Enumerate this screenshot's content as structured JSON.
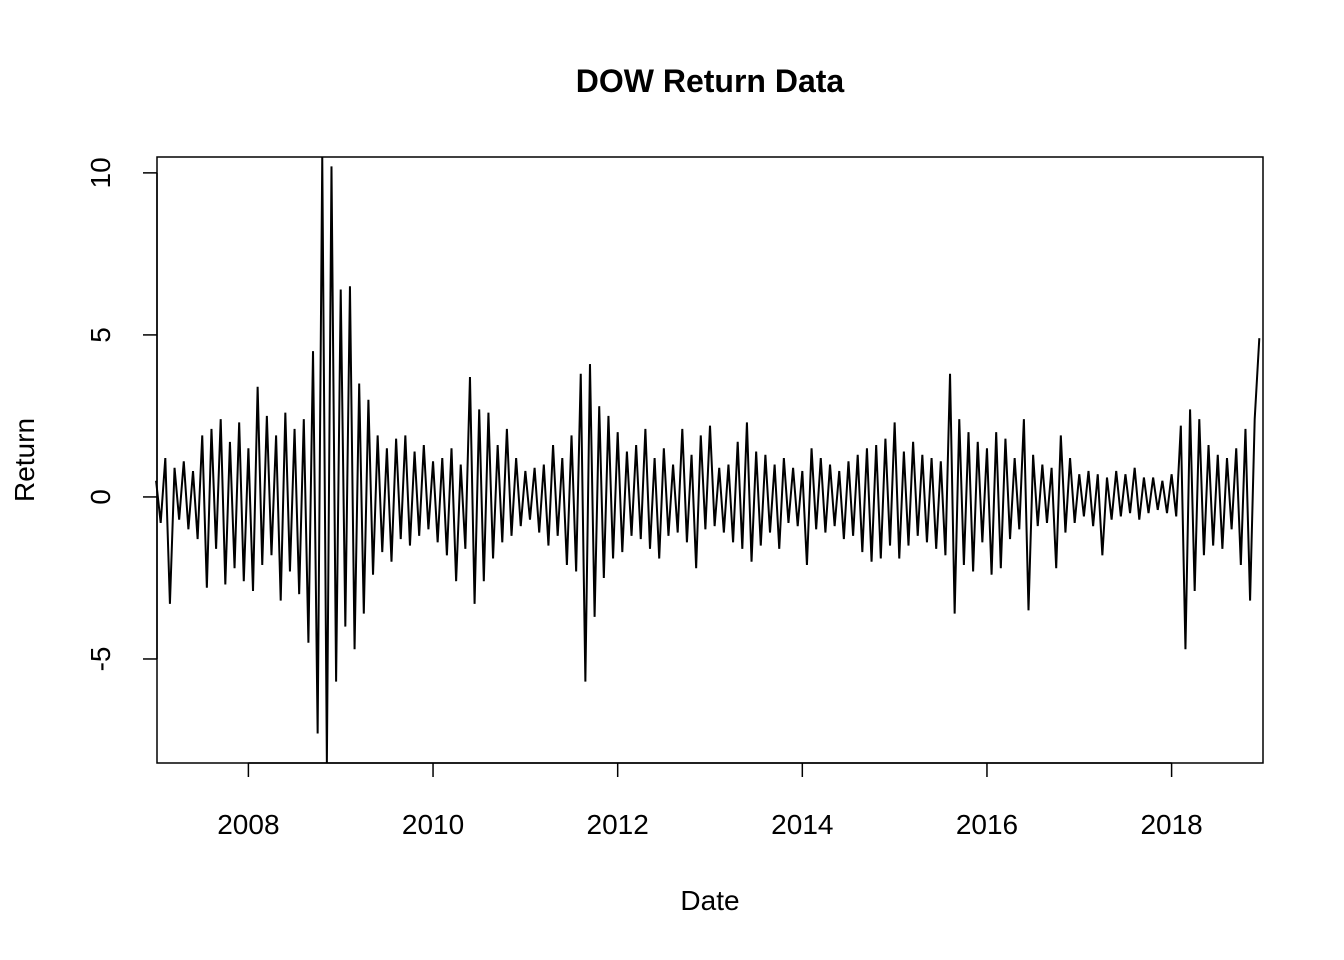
{
  "chart_data": {
    "type": "line",
    "title": "DOW Return Data",
    "xlabel": "Date",
    "ylabel": "Return",
    "x": [
      2007,
      2007.05,
      2007.1,
      2007.15,
      2007.2,
      2007.25,
      2007.3,
      2007.35,
      2007.4,
      2007.45,
      2007.5,
      2007.55,
      2007.6,
      2007.65,
      2007.7,
      2007.75,
      2007.8,
      2007.85,
      2007.9,
      2007.95,
      2008,
      2008.05,
      2008.1,
      2008.15,
      2008.2,
      2008.25,
      2008.3,
      2008.35,
      2008.4,
      2008.45,
      2008.5,
      2008.55,
      2008.6,
      2008.65,
      2008.7,
      2008.75,
      2008.8,
      2008.85,
      2008.9,
      2008.95,
      2009,
      2009.05,
      2009.1,
      2009.15,
      2009.2,
      2009.25,
      2009.3,
      2009.35,
      2009.4,
      2009.45,
      2009.5,
      2009.55,
      2009.6,
      2009.65,
      2009.7,
      2009.75,
      2009.8,
      2009.85,
      2009.9,
      2009.95,
      2010,
      2010.05,
      2010.1,
      2010.15,
      2010.2,
      2010.25,
      2010.3,
      2010.35,
      2010.4,
      2010.45,
      2010.5,
      2010.55,
      2010.6,
      2010.65,
      2010.7,
      2010.75,
      2010.8,
      2010.85,
      2010.9,
      2010.95,
      2011,
      2011.05,
      2011.1,
      2011.15,
      2011.2,
      2011.25,
      2011.3,
      2011.35,
      2011.4,
      2011.45,
      2011.5,
      2011.55,
      2011.6,
      2011.65,
      2011.7,
      2011.75,
      2011.8,
      2011.85,
      2011.9,
      2011.95,
      2012,
      2012.05,
      2012.1,
      2012.15,
      2012.2,
      2012.25,
      2012.3,
      2012.35,
      2012.4,
      2012.45,
      2012.5,
      2012.55,
      2012.6,
      2012.65,
      2012.7,
      2012.75,
      2012.8,
      2012.85,
      2012.9,
      2012.95,
      2013,
      2013.05,
      2013.1,
      2013.15,
      2013.2,
      2013.25,
      2013.3,
      2013.35,
      2013.4,
      2013.45,
      2013.5,
      2013.55,
      2013.6,
      2013.65,
      2013.7,
      2013.75,
      2013.8,
      2013.85,
      2013.9,
      2013.95,
      2014,
      2014.05,
      2014.1,
      2014.15,
      2014.2,
      2014.25,
      2014.3,
      2014.35,
      2014.4,
      2014.45,
      2014.5,
      2014.55,
      2014.6,
      2014.65,
      2014.7,
      2014.75,
      2014.8,
      2014.85,
      2014.9,
      2014.95,
      2015,
      2015.05,
      2015.1,
      2015.15,
      2015.2,
      2015.25,
      2015.3,
      2015.35,
      2015.4,
      2015.45,
      2015.5,
      2015.55,
      2015.6,
      2015.65,
      2015.7,
      2015.75,
      2015.8,
      2015.85,
      2015.9,
      2015.95,
      2016,
      2016.05,
      2016.1,
      2016.15,
      2016.2,
      2016.25,
      2016.3,
      2016.35,
      2016.4,
      2016.45,
      2016.5,
      2016.55,
      2016.6,
      2016.65,
      2016.7,
      2016.75,
      2016.8,
      2016.85,
      2016.9,
      2016.95,
      2017,
      2017.05,
      2017.1,
      2017.15,
      2017.2,
      2017.25,
      2017.3,
      2017.35,
      2017.4,
      2017.45,
      2017.5,
      2017.55,
      2017.6,
      2017.65,
      2017.7,
      2017.75,
      2017.8,
      2017.85,
      2017.9,
      2017.95,
      2018,
      2018.05,
      2018.1,
      2018.15,
      2018.2,
      2018.25,
      2018.3,
      2018.35,
      2018.4,
      2018.45,
      2018.5,
      2018.55,
      2018.6,
      2018.65,
      2018.7,
      2018.75,
      2018.8,
      2018.85,
      2018.9,
      2018.95
    ],
    "values": [
      0.5,
      -0.8,
      1.2,
      -3.3,
      0.9,
      -0.7,
      1.1,
      -1.0,
      0.8,
      -1.3,
      1.9,
      -2.8,
      2.1,
      -1.6,
      2.4,
      -2.7,
      1.7,
      -2.2,
      2.3,
      -2.6,
      1.5,
      -2.9,
      3.4,
      -2.1,
      2.5,
      -1.8,
      1.9,
      -3.2,
      2.6,
      -2.3,
      2.1,
      -3.0,
      2.4,
      -4.5,
      4.5,
      -7.3,
      10.5,
      -8.2,
      10.2,
      -5.7,
      6.4,
      -4.0,
      6.5,
      -4.7,
      3.5,
      -3.6,
      3.0,
      -2.4,
      1.9,
      -1.7,
      1.5,
      -2.0,
      1.8,
      -1.3,
      1.9,
      -1.5,
      1.4,
      -1.2,
      1.6,
      -1.0,
      1.1,
      -1.4,
      1.2,
      -1.8,
      1.5,
      -2.6,
      1.0,
      -1.6,
      3.7,
      -3.3,
      2.7,
      -2.6,
      2.6,
      -1.9,
      1.6,
      -1.4,
      2.1,
      -1.2,
      1.2,
      -0.9,
      0.8,
      -0.7,
      0.9,
      -1.1,
      1.0,
      -1.5,
      1.6,
      -1.2,
      1.2,
      -2.1,
      1.9,
      -2.3,
      3.8,
      -5.7,
      4.1,
      -3.7,
      2.8,
      -2.5,
      2.5,
      -1.9,
      2.0,
      -1.7,
      1.4,
      -1.2,
      1.6,
      -1.3,
      2.1,
      -1.6,
      1.2,
      -1.9,
      1.5,
      -1.2,
      1.0,
      -1.1,
      2.1,
      -1.4,
      1.3,
      -2.2,
      1.9,
      -1.0,
      2.2,
      -0.9,
      0.9,
      -1.1,
      1.0,
      -1.4,
      1.7,
      -1.6,
      2.3,
      -2.0,
      1.4,
      -1.5,
      1.3,
      -1.1,
      1.0,
      -1.6,
      1.2,
      -0.8,
      0.9,
      -0.9,
      0.8,
      -2.1,
      1.5,
      -1.0,
      1.2,
      -1.1,
      1.0,
      -0.9,
      0.8,
      -1.3,
      1.1,
      -1.2,
      1.3,
      -1.7,
      1.5,
      -2.0,
      1.6,
      -1.9,
      1.8,
      -1.5,
      2.3,
      -1.9,
      1.4,
      -1.5,
      1.7,
      -1.2,
      1.3,
      -1.4,
      1.2,
      -1.6,
      1.1,
      -1.8,
      3.8,
      -3.6,
      2.4,
      -2.1,
      2.0,
      -2.3,
      1.7,
      -1.4,
      1.5,
      -2.4,
      2.0,
      -2.2,
      1.8,
      -1.3,
      1.2,
      -1.0,
      2.4,
      -3.5,
      1.3,
      -0.9,
      1.0,
      -0.8,
      0.9,
      -2.2,
      1.9,
      -1.1,
      1.2,
      -0.8,
      0.7,
      -0.6,
      0.8,
      -0.9,
      0.7,
      -1.8,
      0.6,
      -0.7,
      0.8,
      -0.6,
      0.7,
      -0.5,
      0.9,
      -0.7,
      0.6,
      -0.5,
      0.6,
      -0.4,
      0.5,
      -0.5,
      0.7,
      -0.6,
      2.2,
      -4.7,
      2.7,
      -2.9,
      2.4,
      -1.8,
      1.6,
      -1.5,
      1.3,
      -1.6,
      1.2,
      -1.0,
      1.5,
      -2.1,
      2.1,
      -3.2,
      2.4,
      4.9
    ],
    "color": "#000000",
    "xlim": [
      2007.01,
      2018.99
    ],
    "xticks": [
      2008,
      2010,
      2012,
      2014,
      2016,
      2018
    ],
    "ylim": [
      -8.21,
      10.49
    ],
    "yticks": [
      -5,
      0,
      5,
      10
    ]
  }
}
